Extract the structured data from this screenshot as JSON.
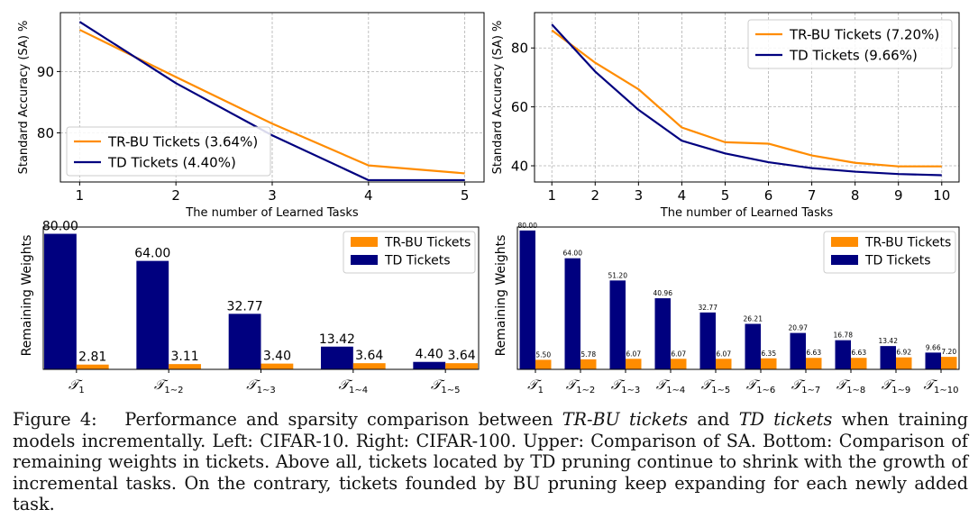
{
  "chart_data": [
    {
      "type": "line",
      "id": "top-left",
      "xlabel": "The number of Learned Tasks",
      "ylabel": "Standard Accuracy (SA) %",
      "x": [
        1,
        2,
        3,
        4,
        5
      ],
      "xticks": [
        "1",
        "2",
        "3",
        "4",
        "5"
      ],
      "yticks": [
        80,
        90
      ],
      "xlim": [
        0.8,
        5.2
      ],
      "ylim": [
        72,
        99.6
      ],
      "grid": true,
      "legend": "bottom-left",
      "series": [
        {
          "name": "TR-BU Tickets (3.64%)",
          "color": "#ff8c00",
          "values": [
            96.8,
            89.1,
            81.5,
            74.7,
            73.4
          ]
        },
        {
          "name": "TD Tickets (4.40%)",
          "color": "#00007f",
          "values": [
            98.1,
            88.1,
            79.6,
            72.3,
            72.3
          ]
        }
      ]
    },
    {
      "type": "line",
      "id": "top-right",
      "xlabel": "The number of Learned Tasks",
      "ylabel": "Standard Accuracy (SA) %",
      "x": [
        1,
        2,
        3,
        4,
        5,
        6,
        7,
        8,
        9,
        10
      ],
      "xticks": [
        "1",
        "2",
        "3",
        "4",
        "5",
        "6",
        "7",
        "8",
        "9",
        "10"
      ],
      "yticks": [
        40,
        60,
        80
      ],
      "xlim": [
        0.6,
        10.4
      ],
      "ylim": [
        34.5,
        92
      ],
      "grid": true,
      "legend": "top-right",
      "series": [
        {
          "name": "TR-BU Tickets (7.20%)",
          "color": "#ff8c00",
          "values": [
            86.0,
            75.0,
            66.0,
            53.0,
            48.0,
            47.5,
            43.5,
            41.0,
            39.8,
            39.8
          ]
        },
        {
          "name": "TD Tickets (9.66%)",
          "color": "#00007f",
          "values": [
            88.0,
            72.0,
            59.0,
            48.5,
            44.2,
            41.2,
            39.2,
            38.0,
            37.2,
            36.8
          ]
        }
      ]
    },
    {
      "type": "bar",
      "id": "bottom-left",
      "ylabel": "Remaining Weights",
      "categories": [
        {
          "base": "𝒯",
          "sub": "1"
        },
        {
          "base": "𝒯",
          "sub": "1∼2"
        },
        {
          "base": "𝒯",
          "sub": "1∼3"
        },
        {
          "base": "𝒯",
          "sub": "1∼4"
        },
        {
          "base": "𝒯",
          "sub": "1∼5"
        }
      ],
      "ylim": [
        0,
        84
      ],
      "legend": "top-right",
      "series": [
        {
          "name": "TR-BU Tickets",
          "color": "#ff8c00",
          "values": [
            2.81,
            3.11,
            3.4,
            3.64,
            3.64
          ],
          "labels": [
            "2.81",
            "3.11",
            "3.40",
            "3.64",
            "3.64"
          ]
        },
        {
          "name": "TD Tickets",
          "color": "#00007f",
          "values": [
            80.0,
            64.0,
            32.77,
            13.42,
            4.4
          ],
          "labels": [
            "80.00",
            "64.00",
            "32.77",
            "13.42",
            "4.40"
          ]
        }
      ]
    },
    {
      "type": "bar",
      "id": "bottom-right",
      "ylabel": "Remaining Weights",
      "categories": [
        {
          "base": "𝒯",
          "sub": "1"
        },
        {
          "base": "𝒯",
          "sub": "1∼2"
        },
        {
          "base": "𝒯",
          "sub": "1∼3"
        },
        {
          "base": "𝒯",
          "sub": "1∼4"
        },
        {
          "base": "𝒯",
          "sub": "1∼5"
        },
        {
          "base": "𝒯",
          "sub": "1∼6"
        },
        {
          "base": "𝒯",
          "sub": "1∼7"
        },
        {
          "base": "𝒯",
          "sub": "1∼8"
        },
        {
          "base": "𝒯",
          "sub": "1∼9"
        },
        {
          "base": "𝒯",
          "sub": "1∼10"
        }
      ],
      "ylim": [
        0,
        82
      ],
      "legend": "top-right",
      "series": [
        {
          "name": "TR-BU Tickets",
          "color": "#ff8c00",
          "values": [
            5.5,
            5.78,
            6.07,
            6.07,
            6.07,
            6.35,
            6.63,
            6.63,
            6.92,
            7.2
          ],
          "labels": [
            "5.50",
            "5.78",
            "6.07",
            "6.07",
            "6.07",
            "6.35",
            "6.63",
            "6.63",
            "6.92",
            "7.20"
          ]
        },
        {
          "name": "TD Tickets",
          "color": "#00007f",
          "values": [
            80.0,
            64.0,
            51.2,
            40.96,
            32.77,
            26.21,
            20.97,
            16.78,
            13.42,
            9.66
          ],
          "labels": [
            "80.00",
            "64.00",
            "51.20",
            "40.96",
            "32.77",
            "26.21",
            "20.97",
            "16.78",
            "13.42",
            "9.66"
          ]
        }
      ]
    }
  ],
  "caption": {
    "label": "Figure 4:",
    "s1": "Performance and sparsity comparison between ",
    "em1": "TR-BU tickets",
    "s2": " and ",
    "em2": "TD tickets",
    "s3": " when training models incrementally. Left: CIFAR-10. Right: CIFAR-100. Upper: Comparison of SA. Bottom: Comparison of remaining weights in tickets. Above all, tickets located by TD pruning continue to shrink with the growth of incremental tasks. On the contrary, tickets founded by BU pruning keep expanding for each newly added task."
  }
}
